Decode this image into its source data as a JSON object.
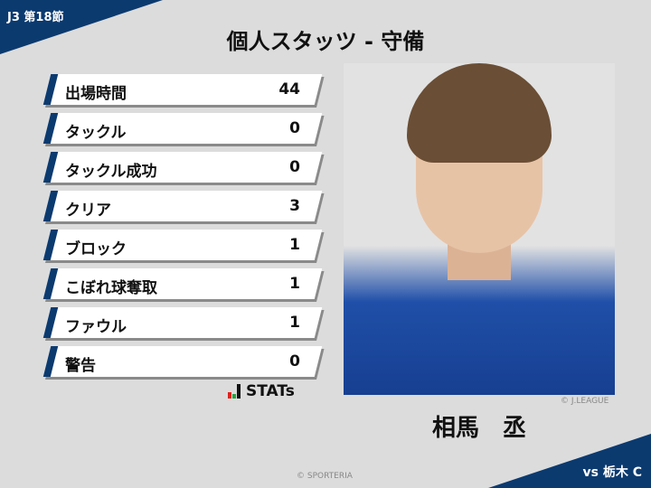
{
  "header": {
    "round": "J3 第18節",
    "title": "個人スタッツ - 守備"
  },
  "stats": [
    {
      "label": "出場時間",
      "value": "44"
    },
    {
      "label": "タックル",
      "value": "0"
    },
    {
      "label": "タックル成功",
      "value": "0"
    },
    {
      "label": "クリア",
      "value": "3"
    },
    {
      "label": "ブロック",
      "value": "1"
    },
    {
      "label": "こぼれ球奪取",
      "value": "1"
    },
    {
      "label": "ファウル",
      "value": "1"
    },
    {
      "label": "警告",
      "value": "0"
    }
  ],
  "brand": {
    "stats_logo": "STATs"
  },
  "player": {
    "name": "相馬　丞",
    "photo_credit": "© J.LEAGUE"
  },
  "footer": {
    "copyright": "© SPORTERIA",
    "opponent": "vs 栃木 C"
  },
  "colors": {
    "navy": "#0b3a6f",
    "background": "#dcdcdc"
  }
}
